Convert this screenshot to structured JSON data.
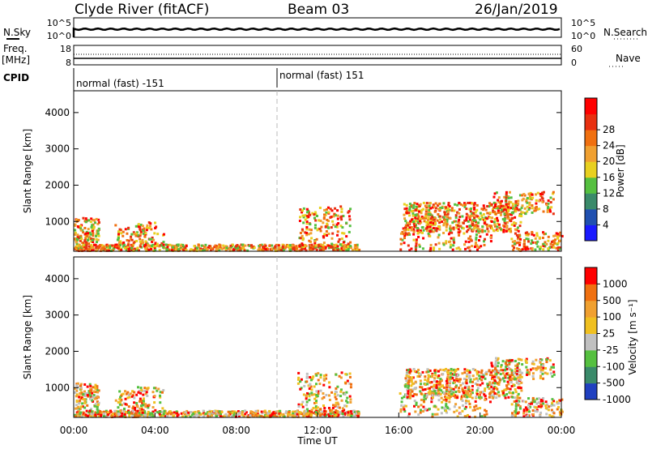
{
  "header": {
    "station": "Clyde River (fitACF)",
    "beam": "Beam 03",
    "date": "26/Jan/2019"
  },
  "left_labels": {
    "nsky": "N.Sky",
    "freq": "Freq.",
    "mhz": "[MHz]",
    "cpid": "CPID"
  },
  "right_labels": {
    "nsearch": "N.Search",
    "nave": "Nave"
  },
  "colors": {
    "power_scale": [
      "#1a1aff",
      "#2050b0",
      "#3a8a6a",
      "#55c040",
      "#e8d020",
      "#f0a030",
      "#f07010",
      "#e83010",
      "#ff0000"
    ],
    "velocity_scale": [
      "#2040c0",
      "#3a8a6a",
      "#55c040",
      "#c0c0c0",
      "#f0c020",
      "#f0a030",
      "#f07010",
      "#ff0000"
    ]
  },
  "chart_data": [
    {
      "type": "line",
      "name": "N.Sky / N.Search",
      "y_left_ticks": [
        "10^5",
        "10^0"
      ],
      "y_right_ticks": [
        "10^5",
        "10^0"
      ],
      "xlim": [
        0,
        24
      ]
    },
    {
      "type": "line",
      "name": "Freq / Nave",
      "y_left_ticks": [
        "18",
        "8"
      ],
      "y_right_ticks": [
        "60",
        "0"
      ],
      "xlim": [
        0,
        24
      ]
    },
    {
      "type": "table",
      "name": "CPID",
      "segments": [
        {
          "start": 0,
          "end": 10,
          "label": "normal (fast) -151"
        },
        {
          "start": 10,
          "end": 24,
          "label": "normal (fast) 151"
        }
      ]
    },
    {
      "type": "heatmap",
      "quantity": "power",
      "ylabel": "Slant Range [km]",
      "yticks": [
        "1000",
        "2000",
        "3000",
        "4000"
      ],
      "ylim": [
        180,
        4600
      ],
      "colorbar_label": "Power [dB]",
      "colorbar_ticks": [
        "4",
        "8",
        "12",
        "16",
        "20",
        "24",
        "28"
      ],
      "colorbar_range": [
        0,
        32
      ]
    },
    {
      "type": "heatmap",
      "quantity": "velocity",
      "ylabel": "Slant Range [km]",
      "yticks": [
        "1000",
        "2000",
        "3000",
        "4000"
      ],
      "ylim": [
        180,
        4600
      ],
      "colorbar_label": "Velocity [m s⁻¹]",
      "colorbar_ticks": [
        "1000",
        "500",
        "100",
        "25",
        "-25",
        "-100",
        "-500",
        "-1000"
      ],
      "xlabel": "Time UT",
      "xticks": [
        "00:00",
        "04:00",
        "08:00",
        "12:00",
        "16:00",
        "20:00",
        "00:00"
      ],
      "xlim": [
        0,
        24
      ]
    }
  ]
}
